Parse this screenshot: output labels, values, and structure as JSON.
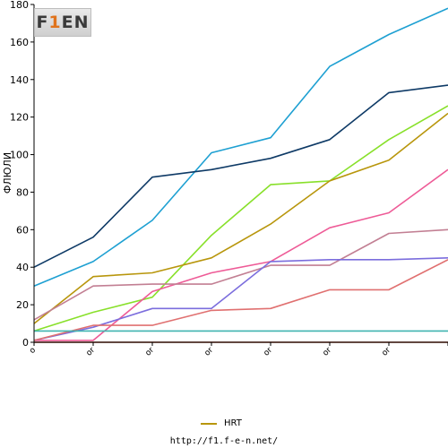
{
  "logo": {
    "part1": "F",
    "part2": "1",
    "part3": "EN"
  },
  "footer": {
    "url": "http://f1.f-e-n.net/"
  },
  "chart_data": {
    "type": "line",
    "title": "",
    "xlabel": "",
    "ylabel": "ФЛЮЛИ",
    "ylim": [
      0,
      180
    ],
    "yticks": [
      0,
      20,
      40,
      60,
      80,
      100,
      120,
      140,
      160,
      180
    ],
    "grid": false,
    "legend_position": "bottom",
    "categories": [
      "o",
      "or",
      "or",
      "or",
      "or",
      "or",
      "or",
      ""
    ],
    "series": [
      {
        "values": [
          30,
          43,
          65,
          101,
          109,
          147,
          164,
          178
        ],
        "color": "#1ea0d2"
      },
      {
        "values": [
          40,
          56,
          88,
          92,
          98,
          108,
          133,
          137
        ],
        "color": "#0e3a66"
      },
      {
        "values": [
          6,
          16,
          24,
          57,
          84,
          86,
          108,
          126
        ],
        "color": "#88e02a"
      },
      {
        "name": "HRT",
        "values": [
          10,
          35,
          37,
          45,
          63,
          86,
          97,
          122
        ],
        "color": "#b8960c"
      },
      {
        "values": [
          1,
          1,
          27,
          37,
          43,
          61,
          69,
          92
        ],
        "color": "#ee5b97"
      },
      {
        "values": [
          12,
          30,
          31,
          31,
          41,
          41,
          58,
          60
        ],
        "color": "#c27f93"
      },
      {
        "values": [
          1,
          8,
          18,
          18,
          43,
          44,
          44,
          45
        ],
        "color": "#7b6ddd"
      },
      {
        "values": [
          1,
          9,
          9,
          17,
          18,
          28,
          28,
          44
        ],
        "color": "#e07070"
      },
      {
        "values": [
          6,
          6,
          6,
          6,
          6,
          6,
          6,
          6
        ],
        "color": "#3fb4b0"
      },
      {
        "values": [
          0,
          0,
          0,
          0,
          0,
          0,
          0,
          0
        ],
        "color": "#8b1f00"
      }
    ]
  }
}
